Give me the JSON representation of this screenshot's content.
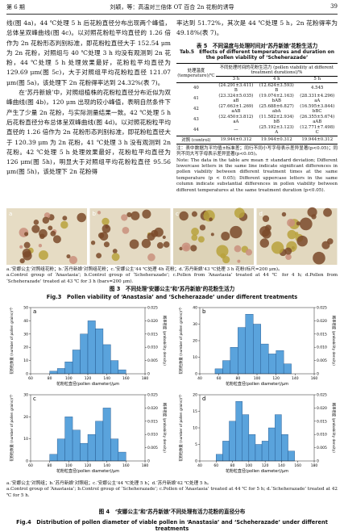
{
  "header": {
    "issue": "第 6 期",
    "running_title": "刘颖，等：高温对三倍体 OT 百合 2n 花粉的诱导",
    "page": "39"
  },
  "left_column": {
    "paragraphs": [
      "线(图 4a)，44 ℃处理 5 h 后花粉直径分布出现两个峰值，总体呈双峰曲线(图 4c)。以对照花粉粒平均直径的 1.26 倍作为 2n 花粉形态判别标准，即花粉粒直径大于 152.54 μm 为 2n 花粉，对照组与 40 ℃处理 3 h 均没有观测到 2n 花粉，44 ℃处理 5 h 处理效果最好，花粉粒平均直径为 129.69 μm(图 5c)，大于对照组平均花粉粒直径 121.07 μm(图 5a)，该处理下 2n 花粉得率达到 24.32%(表 7)。",
      "在‘苏丹新娘’中，对照组植株的花粉粒直径分布近似为双峰曲线(图 4b)，120 μm 出现的较小峰值，表明自然条件下产生了少量 2n 花粉，与实际测量结果一致。42 ℃处理 5 h 后花粉直径分布总体呈双峰曲线(图 4d)。以对照花粉粒平均直径的 1.26 倍作为 2n 花粉形态判别标准，即花粉粒直径大于 120.39 μm 为 2n 花粉，41 ℃处理 3 h 没有观测到 2n 花粉。42 ℃处理 5 h 处理效果最好，花粉粒平均直径为 126 μm(图 5h)，明显大于对照组平均花粉粒直径 95.56 μm(图 5h)，该处理下 2n 花粉得"
    ]
  },
  "right_column": {
    "paragraph": "率达到 51.72%，其次是 44 ℃处理 5 h，2n 花粉得率为 49.18%(表 7)。"
  },
  "table": {
    "caption_cn": "表 5　不同温度与处理时间对‘苏丹新娘’花粉生活力",
    "caption_en": "Tab.5　Effects of different temperatures and duration on the pollen viability of ‘Scheherazade’",
    "head_temp": "处理温度 (temperature)/℃",
    "head_viability": "不同处理时间的花粉生活力 (pollen viability at different treatment durations)/%",
    "durations": [
      "3 h",
      "4 h",
      "5 h"
    ],
    "rows": [
      [
        "40",
        "(24.291±3.411) B",
        "(12.624±3.593) B",
        "4.545"
      ],
      [
        "41",
        "(23.324±5.035) aB",
        "(19.074±2.163) bAB",
        "(28.331±4.296) aA"
      ],
      [
        "42",
        "(27.663±1.269) aAB",
        "(25.688±6.827) abA",
        "(16.595±3.844) bBC"
      ],
      [
        "43",
        "(32.450±3.812) aA",
        "(11.582±2.934) bB",
        "(26.355±5.674) aAB"
      ],
      [
        "44",
        "—",
        "(25.192±3.123) A",
        "(12.771±7.498) C"
      ],
      [
        "对照 (control)",
        "19.944±0.312",
        "19.944±0.312",
        "19.944±0.312"
      ]
    ],
    "note_cn": "注：表中数据为平均值±标准差；同行不同小写字母表示差异显著(p<0.05)；同列不同大写字母表示差异显著(p<0.05)。",
    "note_en": "Note: The data in the table are mean ± standard deviation; Different lowercase letters in the same line indicate significant differences in pollen viability between different treatment times at the same temperature (p < 0.05); Different uppercase letters in the same column indicate substantial differences in pollen viability between different temperatures at the same treatment duration (p<0.05)."
  },
  "figure3": {
    "panel_labels": [
      "a",
      "b",
      "c",
      "d"
    ],
    "legend_cn": "a.‘安娜公主’对照组花粉；b.‘苏丹新娘’对照组花粉；c.‘安娜公主’44 ℃处理 4h 花粉；d.‘苏丹新娘’43 ℃处理 3 h 花粉(标尺=200 μm)。",
    "legend_en": "a.Control group of ‘Anastasia’; b.Control group of ‘Scheherazade’; c.Pollen from ‘Anastasia’ treated at 44 ℃ for 4 h; d.Pollen from ‘Scheherazade’ treated at 43 ℃ for 3 h (bars=200 μm).",
    "title_cn": "图 3　不同处理‘安娜公主’和‘苏丹新娘’的花粉生活力",
    "title_en": "Fig.3　Pollen viability of ‘Anastasia’ and ‘Scheherazade’ under different treatments"
  },
  "figure4": {
    "panels": [
      {
        "type": "histogram",
        "label": "a",
        "xlabel": "花粉粒直径(pollen diameter)/μm",
        "ylabel": "花粉粒数量 (number of pollen grains)/个",
        "y2label": "概率密度 (probability density)",
        "bins": [
          80,
          88,
          96,
          104,
          112,
          120,
          128,
          136,
          144,
          152,
          160
        ],
        "counts": [
          2,
          4,
          9,
          18,
          30,
          40,
          34,
          22,
          10,
          3
        ],
        "xlim": [
          60,
          180
        ],
        "xticks": [
          60,
          80,
          100,
          120,
          140,
          160,
          180
        ],
        "ylim": [
          0,
          50
        ],
        "yticks": [
          0,
          10,
          20,
          30,
          40,
          50
        ],
        "y2lim": [
          0,
          0.025
        ],
        "y2ticks": [
          0,
          0.005,
          {
            "value": 0.01,
            "label": "0.010"
          },
          0.015,
          {
            "value": 0.02,
            "label": "0.020"
          },
          0.025
        ]
      },
      {
        "type": "histogram",
        "label": "b",
        "xlabel": "花粉粒直径(pollen diameter)/μm",
        "ylabel": "花粉粒数量 (number of pollen grains)/个",
        "y2label": "概率密度 (probability density)",
        "bins": [
          56,
          64,
          72,
          80,
          88,
          96,
          104,
          112,
          120,
          128,
          136
        ],
        "counts": [
          3,
          8,
          16,
          28,
          36,
          30,
          18,
          12,
          14,
          6
        ],
        "xlim": [
          40,
          160
        ],
        "xticks": [
          40,
          60,
          80,
          100,
          120,
          140,
          160
        ],
        "ylim": [
          0,
          40
        ],
        "yticks": [
          0,
          10,
          20,
          30,
          40
        ],
        "y2lim": [
          0,
          0.025
        ],
        "y2ticks": [
          0,
          0.005,
          {
            "value": 0.01,
            "label": "0.010"
          },
          0.015,
          {
            "value": 0.02,
            "label": "0.020"
          },
          0.025
        ]
      },
      {
        "type": "histogram",
        "label": "c",
        "xlabel": "花粉粒直径(pollen diameter)/μm",
        "ylabel": "花粉粒数量 (number of pollen grains)/个",
        "y2label": "概率密度 (probability density)",
        "bins": [
          80,
          88,
          96,
          104,
          112,
          120,
          128,
          136,
          144,
          152,
          160
        ],
        "counts": [
          3,
          10,
          20,
          14,
          8,
          12,
          18,
          24,
          10,
          4
        ],
        "xlim": [
          60,
          180
        ],
        "xticks": [
          60,
          80,
          100,
          120,
          140,
          160,
          180
        ],
        "ylim": [
          0,
          30
        ],
        "yticks": [
          0,
          10,
          20,
          30
        ],
        "y2lim": [
          0,
          0.025
        ],
        "y2ticks": [
          0,
          0.005,
          {
            "value": 0.01,
            "label": "0.010"
          },
          0.015,
          {
            "value": 0.02,
            "label": "0.020"
          },
          0.025
        ]
      },
      {
        "type": "histogram",
        "label": "d",
        "xlabel": "花粉粒直径(pollen diameter)/μm",
        "ylabel": "花粉粒数量 (number of pollen grains)/个",
        "y2label": "概率密度 (probability density)",
        "bins": [
          60,
          68,
          76,
          84,
          92,
          100,
          108,
          116,
          124,
          132,
          140,
          148,
          156
        ],
        "counts": [
          2,
          6,
          12,
          18,
          14,
          8,
          5,
          6,
          10,
          14,
          8,
          3
        ],
        "xlim": [
          40,
          180
        ],
        "xticks": [
          40,
          60,
          80,
          100,
          120,
          140,
          160,
          180
        ],
        "ylim": [
          0,
          20
        ],
        "yticks": [
          0,
          5,
          10,
          15,
          20
        ],
        "y2lim": [
          0,
          0.025
        ],
        "y2ticks": [
          0,
          0.005,
          {
            "value": 0.01,
            "label": "0.010"
          },
          0.015,
          {
            "value": 0.02,
            "label": "0.020"
          },
          0.025
        ]
      }
    ],
    "legend_cn": "a.‘安娜公主’对照组；b.‘苏丹新娘’对照组；c.‘安娜公主’44 ℃处理 5 h；d.‘苏丹新娘’42 ℃处理 5 h。",
    "legend_en": "a.Control group of ‘Anastasia’; b.Control group of ‘Scheherazade’; c.Pollen of ‘Anastasia’ treated at 44 ℃ for 5 h; d.‘Scheherazade’ treated at 42 ℃ for 5 h.",
    "title_cn": "图 4　‘安娜公主’和‘苏丹新娘’不同处理有活力花粉的直径分布",
    "title_en": "Fig.4　Distribution of pollen diameter of viable pollen in ‘Anastasia’ and ‘Scheherazade’ under different treatments"
  }
}
